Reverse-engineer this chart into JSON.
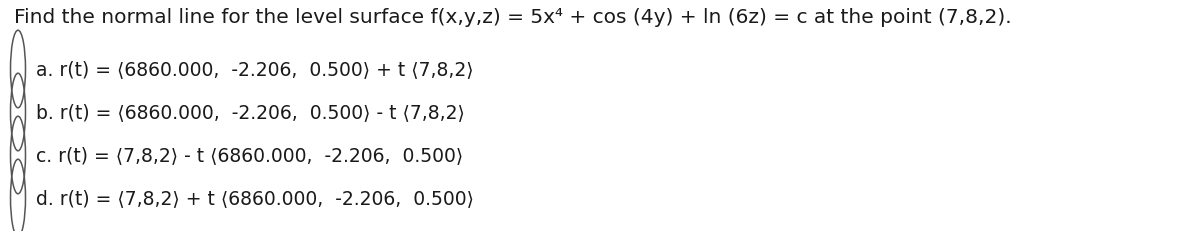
{
  "background_color": "#ffffff",
  "title": "Find the normal line for the level surface f(x,y,z) = 5x⁴ + cos (4y) + ln (6z) = c at the point (7,8,2).",
  "options": [
    {
      "label": "a.",
      "formula": "r(t) = ⟨6860.000,  -2.206,  0.500⟩ + t ⟨7,8,2⟩"
    },
    {
      "label": "b.",
      "formula": "r(t) = ⟨6860.000,  -2.206,  0.500⟩ - t ⟨7,8,2⟩"
    },
    {
      "label": "c.",
      "formula": "r(t) = ⟨7,8,2⟩ - t ⟨6860.000,  -2.206,  0.500⟩"
    },
    {
      "label": "d.",
      "formula": "r(t) = ⟨7,8,2⟩ + t ⟨6860.000,  -2.206,  0.500⟩"
    }
  ],
  "title_fontsize": 14.5,
  "option_fontsize": 13.5,
  "text_color": "#1a1a1a",
  "circle_color": "#555555",
  "fig_width": 12.0,
  "fig_height": 2.32,
  "dpi": 100
}
